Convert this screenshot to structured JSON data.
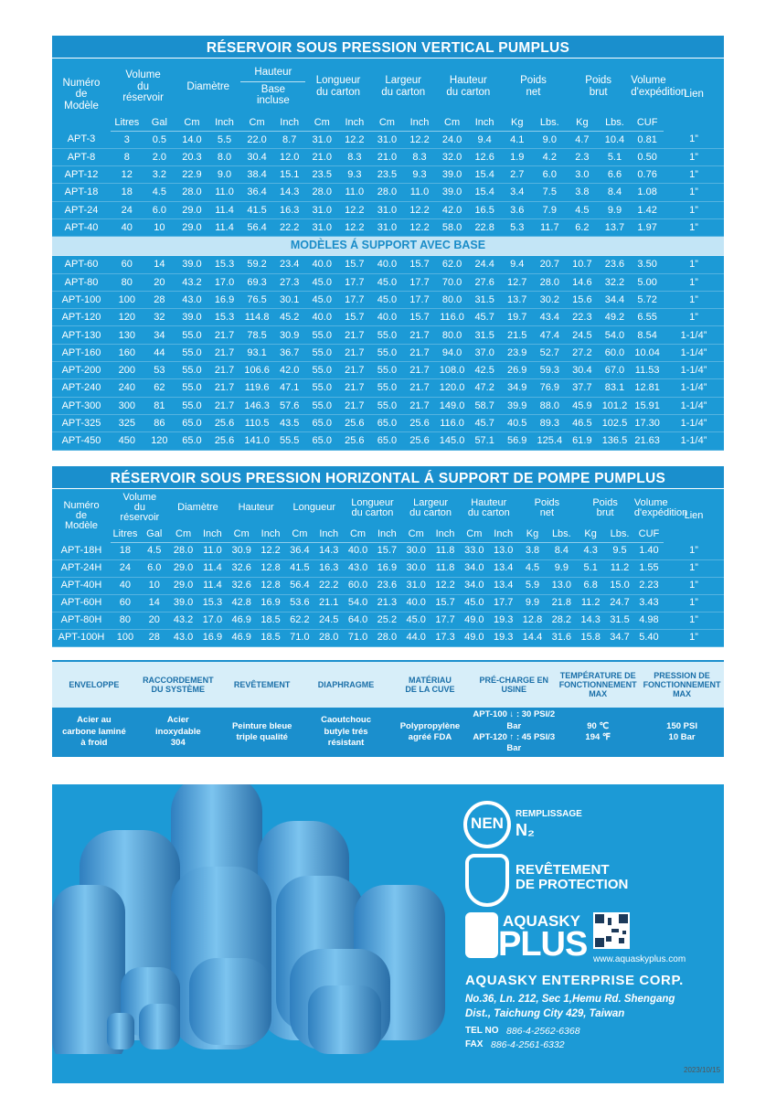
{
  "table1": {
    "title": "RÉSERVOIR SOUS PRESSION VERTICAL PUMPLUS",
    "columns": [
      {
        "label": "Numéro\nde\nModèle"
      },
      {
        "label": "Volume\ndu\nréservoir",
        "units": [
          "Litres",
          "Gal"
        ]
      },
      {
        "label": "Diamètre",
        "units": [
          "Cm",
          "Inch"
        ]
      },
      {
        "label": "Hauteur",
        "note": "Base\nincluse",
        "units": [
          "Cm",
          "Inch"
        ]
      },
      {
        "label": "Longueur\ndu carton",
        "units": [
          "Cm",
          "Inch"
        ]
      },
      {
        "label": "Largeur\ndu carton",
        "units": [
          "Cm",
          "Inch"
        ]
      },
      {
        "label": "Hauteur\ndu carton",
        "units": [
          "Cm",
          "Inch"
        ]
      },
      {
        "label": "Poids\nnet",
        "units": [
          "Kg",
          "Lbs."
        ]
      },
      {
        "label": "Poids\nbrut",
        "units": [
          "Kg",
          "Lbs."
        ]
      },
      {
        "label": "Volume\nd'expédition",
        "units": [
          "CUF"
        ]
      },
      {
        "label": "Lien"
      }
    ],
    "rows": [
      [
        "APT-3",
        "3",
        "0.5",
        "14.0",
        "5.5",
        "22.0",
        "8.7",
        "31.0",
        "12.2",
        "31.0",
        "12.2",
        "24.0",
        "9.4",
        "4.1",
        "9.0",
        "4.7",
        "10.4",
        "0.81",
        "1”"
      ],
      [
        "APT-8",
        "8",
        "2.0",
        "20.3",
        "8.0",
        "30.4",
        "12.0",
        "21.0",
        "8.3",
        "21.0",
        "8.3",
        "32.0",
        "12.6",
        "1.9",
        "4.2",
        "2.3",
        "5.1",
        "0.50",
        "1”"
      ],
      [
        "APT-12",
        "12",
        "3.2",
        "22.9",
        "9.0",
        "38.4",
        "15.1",
        "23.5",
        "9.3",
        "23.5",
        "9.3",
        "39.0",
        "15.4",
        "2.7",
        "6.0",
        "3.0",
        "6.6",
        "0.76",
        "1”"
      ],
      [
        "APT-18",
        "18",
        "4.5",
        "28.0",
        "11.0",
        "36.4",
        "14.3",
        "28.0",
        "11.0",
        "28.0",
        "11.0",
        "39.0",
        "15.4",
        "3.4",
        "7.5",
        "3.8",
        "8.4",
        "1.08",
        "1”"
      ],
      [
        "APT-24",
        "24",
        "6.0",
        "29.0",
        "11.4",
        "41.5",
        "16.3",
        "31.0",
        "12.2",
        "31.0",
        "12.2",
        "42.0",
        "16.5",
        "3.6",
        "7.9",
        "4.5",
        "9.9",
        "1.42",
        "1”"
      ],
      [
        "APT-40",
        "40",
        "10",
        "29.0",
        "11.4",
        "56.4",
        "22.2",
        "31.0",
        "12.2",
        "31.0",
        "12.2",
        "58.0",
        "22.8",
        "5.3",
        "11.7",
        "6.2",
        "13.7",
        "1.97",
        "1”"
      ]
    ],
    "section_title": "MODÈLES Á SUPPORT AVEC BASE",
    "rows_base": [
      [
        "APT-60",
        "60",
        "14",
        "39.0",
        "15.3",
        "59.2",
        "23.4",
        "40.0",
        "15.7",
        "40.0",
        "15.7",
        "62.0",
        "24.4",
        "9.4",
        "20.7",
        "10.7",
        "23.6",
        "3.50",
        "1”"
      ],
      [
        "APT-80",
        "80",
        "20",
        "43.2",
        "17.0",
        "69.3",
        "27.3",
        "45.0",
        "17.7",
        "45.0",
        "17.7",
        "70.0",
        "27.6",
        "12.7",
        "28.0",
        "14.6",
        "32.2",
        "5.00",
        "1”"
      ],
      [
        "APT-100",
        "100",
        "28",
        "43.0",
        "16.9",
        "76.5",
        "30.1",
        "45.0",
        "17.7",
        "45.0",
        "17.7",
        "80.0",
        "31.5",
        "13.7",
        "30.2",
        "15.6",
        "34.4",
        "5.72",
        "1”"
      ],
      [
        "APT-120",
        "120",
        "32",
        "39.0",
        "15.3",
        "114.8",
        "45.2",
        "40.0",
        "15.7",
        "40.0",
        "15.7",
        "116.0",
        "45.7",
        "19.7",
        "43.4",
        "22.3",
        "49.2",
        "6.55",
        "1”"
      ],
      [
        "APT-130",
        "130",
        "34",
        "55.0",
        "21.7",
        "78.5",
        "30.9",
        "55.0",
        "21.7",
        "55.0",
        "21.7",
        "80.0",
        "31.5",
        "21.5",
        "47.4",
        "24.5",
        "54.0",
        "8.54",
        "1-1/4”"
      ],
      [
        "APT-160",
        "160",
        "44",
        "55.0",
        "21.7",
        "93.1",
        "36.7",
        "55.0",
        "21.7",
        "55.0",
        "21.7",
        "94.0",
        "37.0",
        "23.9",
        "52.7",
        "27.2",
        "60.0",
        "10.04",
        "1-1/4”"
      ],
      [
        "APT-200",
        "200",
        "53",
        "55.0",
        "21.7",
        "106.6",
        "42.0",
        "55.0",
        "21.7",
        "55.0",
        "21.7",
        "108.0",
        "42.5",
        "26.9",
        "59.3",
        "30.4",
        "67.0",
        "11.53",
        "1-1/4”"
      ],
      [
        "APT-240",
        "240",
        "62",
        "55.0",
        "21.7",
        "119.6",
        "47.1",
        "55.0",
        "21.7",
        "55.0",
        "21.7",
        "120.0",
        "47.2",
        "34.9",
        "76.9",
        "37.7",
        "83.1",
        "12.81",
        "1-1/4”"
      ],
      [
        "APT-300",
        "300",
        "81",
        "55.0",
        "21.7",
        "146.3",
        "57.6",
        "55.0",
        "21.7",
        "55.0",
        "21.7",
        "149.0",
        "58.7",
        "39.9",
        "88.0",
        "45.9",
        "101.2",
        "15.91",
        "1-1/4”"
      ],
      [
        "APT-325",
        "325",
        "86",
        "65.0",
        "25.6",
        "110.5",
        "43.5",
        "65.0",
        "25.6",
        "65.0",
        "25.6",
        "116.0",
        "45.7",
        "40.5",
        "89.3",
        "46.5",
        "102.5",
        "17.30",
        "1-1/4”"
      ],
      [
        "APT-450",
        "450",
        "120",
        "65.0",
        "25.6",
        "141.0",
        "55.5",
        "65.0",
        "25.6",
        "65.0",
        "25.6",
        "145.0",
        "57.1",
        "56.9",
        "125.4",
        "61.9",
        "136.5",
        "21.63",
        "1-1/4”"
      ]
    ]
  },
  "table2": {
    "title": "RÉSERVOIR SOUS PRESSION HORIZONTAL Á  SUPPORT DE POMPE PUMPLUS",
    "columns": [
      {
        "label": "Numéro\nde\nModèle"
      },
      {
        "label": "Volume\ndu\nréservoir",
        "units": [
          "Litres",
          "Gal"
        ]
      },
      {
        "label": "Diamètre",
        "units": [
          "Cm",
          "Inch"
        ]
      },
      {
        "label": "Hauteur",
        "units": [
          "Cm",
          "Inch"
        ]
      },
      {
        "label": "Longueur",
        "units": [
          "Cm",
          "Inch"
        ]
      },
      {
        "label": "Longueur\ndu carton",
        "units": [
          "Cm",
          "Inch"
        ]
      },
      {
        "label": "Largeur\ndu carton",
        "units": [
          "Cm",
          "Inch"
        ]
      },
      {
        "label": "Hauteur\ndu carton",
        "units": [
          "Cm",
          "Inch"
        ]
      },
      {
        "label": "Poids\nnet",
        "units": [
          "Kg",
          "Lbs."
        ]
      },
      {
        "label": "Poids\nbrut",
        "units": [
          "Kg",
          "Lbs."
        ]
      },
      {
        "label": "Volume\nd'expédition",
        "units": [
          "CUF"
        ]
      },
      {
        "label": "Lien"
      }
    ],
    "rows": [
      [
        "APT-18H",
        "18",
        "4.5",
        "28.0",
        "11.0",
        "30.9",
        "12.2",
        "36.4",
        "14.3",
        "40.0",
        "15.7",
        "30.0",
        "11.8",
        "33.0",
        "13.0",
        "3.8",
        "8.4",
        "4.3",
        "9.5",
        "1.40",
        "1”"
      ],
      [
        "APT-24H",
        "24",
        "6.0",
        "29.0",
        "11.4",
        "32.6",
        "12.8",
        "41.5",
        "16.3",
        "43.0",
        "16.9",
        "30.0",
        "11.8",
        "34.0",
        "13.4",
        "4.5",
        "9.9",
        "5.1",
        "11.2",
        "1.55",
        "1”"
      ],
      [
        "APT-40H",
        "40",
        "10",
        "29.0",
        "11.4",
        "32.6",
        "12.8",
        "56.4",
        "22.2",
        "60.0",
        "23.6",
        "31.0",
        "12.2",
        "34.0",
        "13.4",
        "5.9",
        "13.0",
        "6.8",
        "15.0",
        "2.23",
        "1”"
      ],
      [
        "APT-60H",
        "60",
        "14",
        "39.0",
        "15.3",
        "42.8",
        "16.9",
        "53.6",
        "21.1",
        "54.0",
        "21.3",
        "40.0",
        "15.7",
        "45.0",
        "17.7",
        "9.9",
        "21.8",
        "11.2",
        "24.7",
        "3.43",
        "1”"
      ],
      [
        "APT-80H",
        "80",
        "20",
        "43.2",
        "17.0",
        "46.9",
        "18.5",
        "62.2",
        "24.5",
        "64.0",
        "25.2",
        "45.0",
        "17.7",
        "49.0",
        "19.3",
        "12.8",
        "28.2",
        "14.3",
        "31.5",
        "4.98",
        "1”"
      ],
      [
        "APT-100H",
        "100",
        "28",
        "43.0",
        "16.9",
        "46.9",
        "18.5",
        "71.0",
        "28.0",
        "71.0",
        "28.0",
        "44.0",
        "17.3",
        "49.0",
        "19.3",
        "14.4",
        "31.6",
        "15.8",
        "34.7",
        "5.40",
        "1”"
      ]
    ]
  },
  "specs": {
    "headers": [
      "ENVELOPPE",
      "RACCORDEMENT\nDU SYSTÈME",
      "REVÊTEMENT",
      "DIAPHRAGME",
      "MATÉRIAU\nDE LA CUVE",
      "PRÉ-CHARGE EN USINE",
      "TEMPÉRATURE DE\nFONCTIONNEMENT\nMAX",
      "PRESSION DE\nFONCTIONNEMENT\nMAX"
    ],
    "values": [
      "Acier au\ncarbone laminé\nà froid",
      "Acier\ninoxydable\n304",
      "Peinture bleue\ntriple qualité",
      "Caoutchouc\nbutyle trés\nrésistant",
      "Polypropylène\nagréé FDA",
      "APT-100 ↓ : 30 PSI/2 Bar\nAPT-120 ↑ : 45 PSI/3 Bar",
      "90 ℃\n194 ℉",
      "150 PSI\n10 Bar"
    ]
  },
  "brand": {
    "nen_logo": "NEN",
    "fill_label": "REMPLISSAGE",
    "fill_gas": "N₂",
    "coating": "REVÊTEMENT\nDE PROTECTION",
    "logo_top": "AQUASKY",
    "logo_bottom": "PLUS",
    "website": "www.aquaskyplus.com",
    "company": "AQUASKY ENTERPRISE CORP.",
    "address": "No.36, Ln. 212, Sec 1,Hemu Rd. Shengang\nDist., Taichung City 429, Taiwan",
    "tel_label": "TEL NO",
    "tel": "886-4-2562-6368",
    "fax_label": "FAX",
    "fax": "886-4-2561-6332"
  },
  "date": "2023/10/15"
}
